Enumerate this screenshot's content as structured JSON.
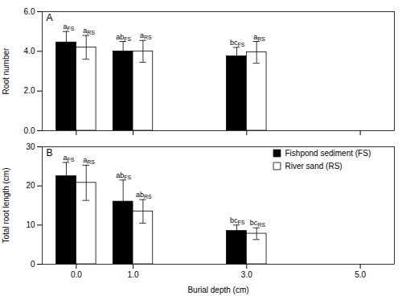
{
  "chart_data": [
    {
      "type": "bar",
      "title": "A",
      "ylabel": "Root number",
      "x": [
        0,
        1,
        3
      ],
      "xlim": [
        -0.6,
        5.6
      ],
      "xticks": [
        0,
        1,
        3,
        5
      ],
      "ylim": [
        0,
        6
      ],
      "yticks": [
        0,
        2,
        4,
        6
      ],
      "tick_labels": "y",
      "series": [
        {
          "name": "Fishpond sediment (FS)",
          "color": "#000000",
          "values": [
            4.45,
            4.0,
            3.75
          ],
          "errors": [
            0.55,
            0.5,
            0.45
          ],
          "annotations": [
            "a",
            "ab",
            "bc"
          ],
          "annotation_subscript": "FS"
        },
        {
          "name": "River sand (RS)",
          "color": "#ffffff",
          "values": [
            4.2,
            4.0,
            3.95
          ],
          "errors": [
            0.6,
            0.55,
            0.55
          ],
          "annotations": [
            "a",
            "a",
            "a"
          ],
          "annotation_subscript": "RS"
        }
      ]
    },
    {
      "type": "bar",
      "title": "B",
      "ylabel": "Total root length (cm)",
      "xlabel": "Burial depth (cm)",
      "x": [
        0,
        1,
        3
      ],
      "xlim": [
        -0.6,
        5.6
      ],
      "xticks": [
        0,
        1,
        3,
        5
      ],
      "ylim": [
        0,
        30
      ],
      "yticks": [
        0,
        10,
        20,
        30
      ],
      "legend": "upper right",
      "series": [
        {
          "name": "Fishpond sediment (FS)",
          "color": "#000000",
          "values": [
            22.5,
            16.0,
            8.5
          ],
          "errors": [
            3.5,
            5.5,
            1.5
          ],
          "annotations": [
            "a",
            "ab",
            "bc"
          ],
          "annotation_subscript": "FS"
        },
        {
          "name": "River sand (RS)",
          "color": "#ffffff",
          "values": [
            20.8,
            13.5,
            7.8
          ],
          "errors": [
            4.5,
            3.0,
            1.5
          ],
          "annotations": [
            "a",
            "ab",
            "bc"
          ],
          "annotation_subscript": "RS"
        }
      ]
    }
  ]
}
